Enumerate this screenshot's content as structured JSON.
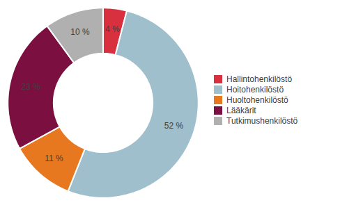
{
  "chart_data": {
    "type": "pie",
    "categories": [
      "Hallintohenkilöstö",
      "Hoitohenkilöstö",
      "Huoltohenkilöstö",
      "Lääkärit",
      "Tutkimushenkilöstö"
    ],
    "values": [
      4,
      52,
      11,
      23,
      10
    ],
    "value_labels": [
      "4 %",
      "52 %",
      "11 %",
      "23 %",
      "10 %"
    ],
    "colors": [
      "#d93040",
      "#a0bfcc",
      "#e87820",
      "#7b1040",
      "#b0b0b0"
    ],
    "data_labels": true,
    "legend": "right"
  }
}
